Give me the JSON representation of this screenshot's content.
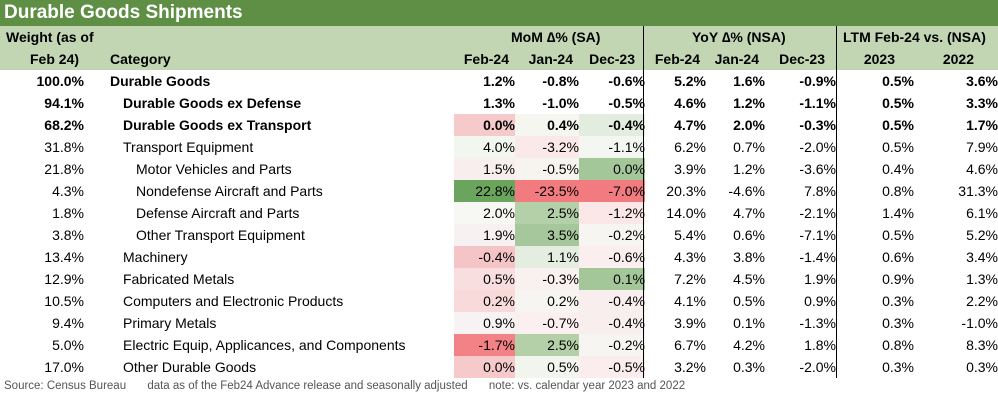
{
  "title": "Durable Goods Shipments",
  "header": {
    "weight_line1": "Weight (as of",
    "weight_line2": "Feb 24)",
    "category": "Category",
    "mom_group": "MoM ∆% (SA)",
    "yoy_group": "YoY ∆% (NSA)",
    "ltm_group": "LTM Feb-24 vs. (NSA)",
    "columns": [
      "Feb-24",
      "Jan-24",
      "Dec-23",
      "Feb-24",
      "Jan-24",
      "Dec-23",
      "2023",
      "2022"
    ]
  },
  "rows": [
    {
      "weight": "100.0%",
      "category": "Durable Goods",
      "indent": 0,
      "bold": true,
      "values": [
        "1.2%",
        "-0.8%",
        "-0.6%",
        "5.2%",
        "1.6%",
        "-0.9%",
        "0.5%",
        "3.6%"
      ],
      "shading": [
        "",
        "",
        "",
        "",
        "",
        "",
        "",
        ""
      ]
    },
    {
      "weight": "94.1%",
      "category": "Durable Goods ex Defense",
      "indent": 1,
      "bold": true,
      "values": [
        "1.3%",
        "-1.0%",
        "-0.5%",
        "4.6%",
        "1.2%",
        "-1.1%",
        "0.5%",
        "3.3%"
      ],
      "shading": [
        "",
        "",
        "",
        "",
        "",
        "",
        "",
        ""
      ]
    },
    {
      "weight": "68.2%",
      "category": "Durable Goods ex Transport",
      "indent": 1,
      "bold": true,
      "values": [
        "0.0%",
        "0.4%",
        "-0.4%",
        "4.7%",
        "2.0%",
        "-0.3%",
        "0.5%",
        "1.7%"
      ],
      "shading": [
        "#f6c9cb",
        "#f6f6f0",
        "#e2ede0",
        "",
        "",
        "",
        "",
        ""
      ]
    },
    {
      "weight": "31.8%",
      "category": "Transport Equipment",
      "indent": 1,
      "bold": false,
      "values": [
        "4.0%",
        "-3.2%",
        "-1.1%",
        "6.2%",
        "0.7%",
        "-2.0%",
        "0.5%",
        "7.9%"
      ],
      "shading": [
        "#f1f6ef",
        "#fbe8e8",
        "#f3f6f1",
        "",
        "",
        "",
        "",
        ""
      ]
    },
    {
      "weight": "21.8%",
      "category": "Motor Vehicles and Parts",
      "indent": 2,
      "bold": false,
      "values": [
        "1.5%",
        "-0.5%",
        "0.0%",
        "3.9%",
        "1.2%",
        "-3.6%",
        "0.4%",
        "4.6%"
      ],
      "shading": [
        "#f8eeee",
        "#f7f4f0",
        "#a4c79a",
        "",
        "",
        "",
        "",
        ""
      ]
    },
    {
      "weight": "4.3%",
      "category": "Nondefense Aircraft and Parts",
      "indent": 2,
      "bold": false,
      "values": [
        "22.8%",
        "-23.5%",
        "-7.0%",
        "20.3%",
        "-4.6%",
        "7.8%",
        "0.8%",
        "31.3%"
      ],
      "shading": [
        "#6ba55d",
        "#f27b80",
        "#f27b80",
        "",
        "",
        "",
        "",
        ""
      ]
    },
    {
      "weight": "1.8%",
      "category": "Defense Aircraft and Parts",
      "indent": 2,
      "bold": false,
      "values": [
        "2.0%",
        "2.5%",
        "-1.2%",
        "14.0%",
        "4.7%",
        "-2.1%",
        "1.4%",
        "6.1%"
      ],
      "shading": [
        "#f7f7f4",
        "#b4d0a9",
        "#fbe7e7",
        "",
        "",
        "",
        "",
        ""
      ]
    },
    {
      "weight": "3.8%",
      "category": "Other Transport Equipment",
      "indent": 2,
      "bold": false,
      "values": [
        "1.9%",
        "3.5%",
        "-0.2%",
        "5.4%",
        "0.6%",
        "-7.1%",
        "0.5%",
        "5.2%"
      ],
      "shading": [
        "#f8f1f1",
        "#a5c79b",
        "#f7f5f1",
        "",
        "",
        "",
        "",
        ""
      ]
    },
    {
      "weight": "13.4%",
      "category": "Machinery",
      "indent": 1,
      "bold": false,
      "values": [
        "-0.4%",
        "1.1%",
        "-0.6%",
        "4.3%",
        "3.8%",
        "-1.4%",
        "0.6%",
        "3.4%"
      ],
      "shading": [
        "#f5c4c6",
        "#e3eee0",
        "#fbeeee",
        "",
        "",
        "",
        "",
        ""
      ]
    },
    {
      "weight": "12.9%",
      "category": "Fabricated Metals",
      "indent": 1,
      "bold": false,
      "values": [
        "0.5%",
        "-0.3%",
        "0.1%",
        "7.2%",
        "4.5%",
        "1.9%",
        "0.9%",
        "1.3%"
      ],
      "shading": [
        "#f8dedf",
        "#f8f1f0",
        "#a4c79a",
        "",
        "",
        "",
        "",
        ""
      ]
    },
    {
      "weight": "10.5%",
      "category": "Computers and Electronic Products",
      "indent": 1,
      "bold": false,
      "values": [
        "0.2%",
        "0.2%",
        "-0.4%",
        "4.1%",
        "0.5%",
        "0.9%",
        "0.3%",
        "2.2%"
      ],
      "shading": [
        "#f8dadb",
        "#f7f5f2",
        "#f9eeee",
        "",
        "",
        "",
        "",
        ""
      ]
    },
    {
      "weight": "9.4%",
      "category": "Primary Metals",
      "indent": 1,
      "bold": false,
      "values": [
        "0.9%",
        "-0.7%",
        "-0.4%",
        "3.9%",
        "0.1%",
        "-1.3%",
        "0.3%",
        "-1.0%"
      ],
      "shading": [
        "#f7f3f3",
        "#fbefef",
        "#f9eeee",
        "",
        "",
        "",
        "",
        ""
      ]
    },
    {
      "weight": "5.0%",
      "category": "Electric Equip, Applicances, and Components",
      "indent": 1,
      "bold": false,
      "values": [
        "-1.7%",
        "2.5%",
        "-0.2%",
        "6.7%",
        "4.2%",
        "1.8%",
        "0.8%",
        "8.3%"
      ],
      "shading": [
        "#f28286",
        "#b4d0a9",
        "#f7f5f1",
        "",
        "",
        "",
        "",
        ""
      ]
    },
    {
      "weight": "17.0%",
      "category": "Other Durable Goods",
      "indent": 1,
      "bold": false,
      "values": [
        "0.0%",
        "0.5%",
        "-0.5%",
        "3.2%",
        "0.3%",
        "-2.0%",
        "0.3%",
        "0.3%"
      ],
      "shading": [
        "#f6c9cb",
        "#f2f5ee",
        "#fbeded",
        "",
        "",
        "",
        "",
        ""
      ]
    }
  ],
  "footer": {
    "source": "Source: Census Bureau",
    "note1": "data as of the Feb24 Advance release and seasonally adjusted",
    "note2": "note: vs. calendar year 2023 and 2022"
  },
  "colors": {
    "title_bg": "#5e8f45",
    "header_bg": "#c2d6b4",
    "positive_strong": "#6ba55d",
    "negative_strong": "#f27b80"
  }
}
